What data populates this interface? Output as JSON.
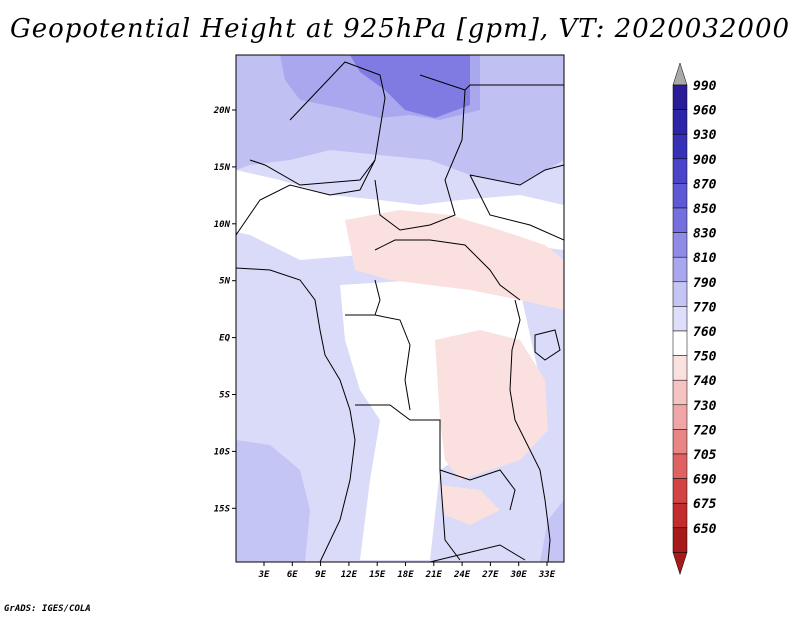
{
  "title": "Geopotential Height at 925hPa [gpm], VT: 2020032000",
  "credit": "GrADS: IGES/COLA",
  "map": {
    "variable": "Geopotential Height",
    "level": "925hPa",
    "units": "gpm",
    "valid_time": "2020032000",
    "lat_labels": [
      "20N",
      "15N",
      "10N",
      "5N",
      "EQ",
      "5S",
      "10S",
      "15S"
    ],
    "lon_labels": [
      "3E",
      "6E",
      "9E",
      "12E",
      "15E",
      "18E",
      "21E",
      "24E",
      "27E",
      "30E",
      "33E"
    ]
  },
  "colorbar": {
    "levels": [
      "990",
      "960",
      "930",
      "900",
      "870",
      "850",
      "830",
      "810",
      "790",
      "770",
      "760",
      "750",
      "740",
      "730",
      "720",
      "705",
      "690",
      "675",
      "650"
    ],
    "colors": [
      "#2a1c96",
      "#2d25a8",
      "#3731b7",
      "#4a44c8",
      "#5e5ad6",
      "#7570e0",
      "#8f8ce8",
      "#a9a8ef",
      "#c4c4f5",
      "#dedefa",
      "#ffffff",
      "#fbe0e0",
      "#f6c3c3",
      "#f0a6a6",
      "#e98585",
      "#df6262",
      "#d34444",
      "#c22c2c",
      "#a61a1a"
    ],
    "top_arrow_color": "#a9a9a9",
    "bottom_arrow_color": "#a61a1a"
  }
}
